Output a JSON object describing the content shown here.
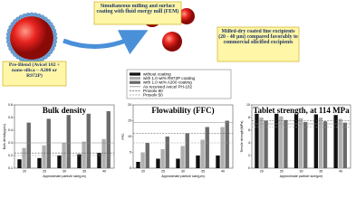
{
  "boxes": {
    "preblend": "Pre-Blend (Avicel 102 + nano-silica – A200 or R972P)",
    "process": "Simultaneous milling and surface coating with fluid energy mill (FEM)",
    "result": "Milled-dry coated fine excipients (20 - 40 µm) compared favorably to commercial silicified excipients"
  },
  "legend": [
    {
      "name": "without coating",
      "color": "#111111",
      "style": "bar"
    },
    {
      "name": "with 1.0 wt% R972P coating",
      "color": "#b0b0b0",
      "style": "bar"
    },
    {
      "name": "with 1.0 wt% A200 coating",
      "color": "#6a6a6a",
      "style": "bar"
    },
    {
      "name": "As received Avicel PH-102",
      "color": "#888888",
      "style": "solid"
    },
    {
      "name": "Prosolv 90",
      "color": "#555555",
      "style": "dashed"
    },
    {
      "name": "Prosolv 50",
      "color": "#999999",
      "style": "dashed"
    }
  ],
  "chart_data": [
    {
      "type": "bar",
      "title": "Bulk density",
      "xlabel": "Approximate particle size(µm)",
      "ylabel": "Bulk density(g/cc)",
      "categories": [
        "20",
        "25",
        "30",
        "35",
        "40"
      ],
      "ylim": [
        0.1,
        0.6
      ],
      "yticks": [
        0.1,
        0.2,
        0.3,
        0.4,
        0.5,
        0.6
      ],
      "series": [
        {
          "color": "#111111",
          "values": [
            0.17,
            0.18,
            0.2,
            0.21,
            0.22
          ]
        },
        {
          "color": "#b0b0b0",
          "values": [
            0.26,
            0.28,
            0.3,
            0.31,
            0.33
          ]
        },
        {
          "color": "#6a6a6a",
          "values": [
            0.46,
            0.49,
            0.52,
            0.53,
            0.55
          ]
        }
      ],
      "reference_lines": [
        {
          "value": 0.3,
          "legend": 3
        },
        {
          "value": 0.22,
          "legend": 4
        },
        {
          "value": 0.2,
          "legend": 5
        }
      ]
    },
    {
      "type": "bar",
      "title": "Flowability (FFC)",
      "xlabel": "Approximate particle size(µm)",
      "ylabel": "FFC",
      "categories": [
        "20",
        "25",
        "30",
        "35",
        "40"
      ],
      "ylim": [
        0,
        20
      ],
      "yticks": [
        0,
        5,
        10,
        15,
        20
      ],
      "series": [
        {
          "color": "#111111",
          "values": [
            2,
            3,
            3,
            4,
            4
          ]
        },
        {
          "color": "#b0b0b0",
          "values": [
            5,
            6,
            7,
            9,
            13
          ]
        },
        {
          "color": "#6a6a6a",
          "values": [
            8,
            10,
            11,
            13,
            15
          ]
        }
      ],
      "reference_lines": [
        {
          "value": 14.5,
          "legend": 3
        },
        {
          "value": 11,
          "legend": 4
        },
        {
          "value": 8,
          "legend": 5
        }
      ]
    },
    {
      "type": "bar",
      "title": "Tablet strength, at 114 MPa",
      "xlabel": "Approximate particle size(µm)",
      "ylabel": "Tensile strength(MPa)",
      "categories": [
        "20",
        "25",
        "30",
        "35",
        "40"
      ],
      "ylim": [
        0,
        10
      ],
      "yticks": [
        0,
        2,
        4,
        6,
        8,
        10
      ],
      "series": [
        {
          "color": "#111111",
          "values": [
            8.6,
            8.6,
            8.5,
            8.5,
            8.4
          ]
        },
        {
          "color": "#b0b0b0",
          "values": [
            8,
            8.2,
            7.9,
            8,
            7.8
          ]
        },
        {
          "color": "#6a6a6a",
          "values": [
            7.5,
            7.6,
            7.3,
            7.4,
            7.2
          ]
        }
      ],
      "reference_lines": [
        {
          "value": 7,
          "legend": 3
        },
        {
          "value": 7.5,
          "legend": 4
        },
        {
          "value": 6.5,
          "legend": 5
        }
      ]
    }
  ]
}
